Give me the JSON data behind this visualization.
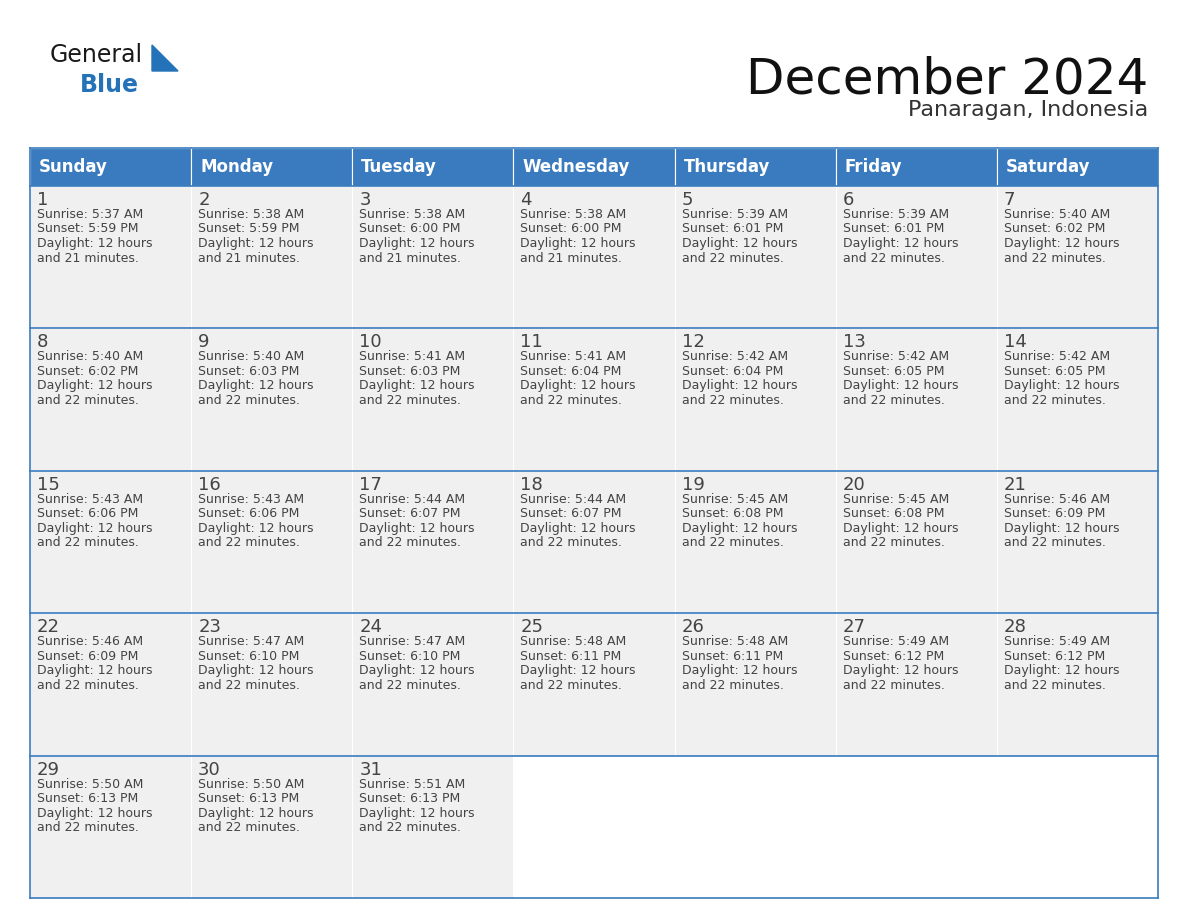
{
  "title": "December 2024",
  "subtitle": "Panaragan, Indonesia",
  "header_color": "#3a7bbf",
  "header_text_color": "#ffffff",
  "day_names": [
    "Sunday",
    "Monday",
    "Tuesday",
    "Wednesday",
    "Thursday",
    "Friday",
    "Saturday"
  ],
  "weeks": [
    [
      {
        "day": "1",
        "sunrise": "5:37 AM",
        "sunset": "5:59 PM",
        "daylight_line1": "12 hours",
        "daylight_line2": "and 21 minutes."
      },
      {
        "day": "2",
        "sunrise": "5:38 AM",
        "sunset": "5:59 PM",
        "daylight_line1": "12 hours",
        "daylight_line2": "and 21 minutes."
      },
      {
        "day": "3",
        "sunrise": "5:38 AM",
        "sunset": "6:00 PM",
        "daylight_line1": "12 hours",
        "daylight_line2": "and 21 minutes."
      },
      {
        "day": "4",
        "sunrise": "5:38 AM",
        "sunset": "6:00 PM",
        "daylight_line1": "12 hours",
        "daylight_line2": "and 21 minutes."
      },
      {
        "day": "5",
        "sunrise": "5:39 AM",
        "sunset": "6:01 PM",
        "daylight_line1": "12 hours",
        "daylight_line2": "and 22 minutes."
      },
      {
        "day": "6",
        "sunrise": "5:39 AM",
        "sunset": "6:01 PM",
        "daylight_line1": "12 hours",
        "daylight_line2": "and 22 minutes."
      },
      {
        "day": "7",
        "sunrise": "5:40 AM",
        "sunset": "6:02 PM",
        "daylight_line1": "12 hours",
        "daylight_line2": "and 22 minutes."
      }
    ],
    [
      {
        "day": "8",
        "sunrise": "5:40 AM",
        "sunset": "6:02 PM",
        "daylight_line1": "12 hours",
        "daylight_line2": "and 22 minutes."
      },
      {
        "day": "9",
        "sunrise": "5:40 AM",
        "sunset": "6:03 PM",
        "daylight_line1": "12 hours",
        "daylight_line2": "and 22 minutes."
      },
      {
        "day": "10",
        "sunrise": "5:41 AM",
        "sunset": "6:03 PM",
        "daylight_line1": "12 hours",
        "daylight_line2": "and 22 minutes."
      },
      {
        "day": "11",
        "sunrise": "5:41 AM",
        "sunset": "6:04 PM",
        "daylight_line1": "12 hours",
        "daylight_line2": "and 22 minutes."
      },
      {
        "day": "12",
        "sunrise": "5:42 AM",
        "sunset": "6:04 PM",
        "daylight_line1": "12 hours",
        "daylight_line2": "and 22 minutes."
      },
      {
        "day": "13",
        "sunrise": "5:42 AM",
        "sunset": "6:05 PM",
        "daylight_line1": "12 hours",
        "daylight_line2": "and 22 minutes."
      },
      {
        "day": "14",
        "sunrise": "5:42 AM",
        "sunset": "6:05 PM",
        "daylight_line1": "12 hours",
        "daylight_line2": "and 22 minutes."
      }
    ],
    [
      {
        "day": "15",
        "sunrise": "5:43 AM",
        "sunset": "6:06 PM",
        "daylight_line1": "12 hours",
        "daylight_line2": "and 22 minutes."
      },
      {
        "day": "16",
        "sunrise": "5:43 AM",
        "sunset": "6:06 PM",
        "daylight_line1": "12 hours",
        "daylight_line2": "and 22 minutes."
      },
      {
        "day": "17",
        "sunrise": "5:44 AM",
        "sunset": "6:07 PM",
        "daylight_line1": "12 hours",
        "daylight_line2": "and 22 minutes."
      },
      {
        "day": "18",
        "sunrise": "5:44 AM",
        "sunset": "6:07 PM",
        "daylight_line1": "12 hours",
        "daylight_line2": "and 22 minutes."
      },
      {
        "day": "19",
        "sunrise": "5:45 AM",
        "sunset": "6:08 PM",
        "daylight_line1": "12 hours",
        "daylight_line2": "and 22 minutes."
      },
      {
        "day": "20",
        "sunrise": "5:45 AM",
        "sunset": "6:08 PM",
        "daylight_line1": "12 hours",
        "daylight_line2": "and 22 minutes."
      },
      {
        "day": "21",
        "sunrise": "5:46 AM",
        "sunset": "6:09 PM",
        "daylight_line1": "12 hours",
        "daylight_line2": "and 22 minutes."
      }
    ],
    [
      {
        "day": "22",
        "sunrise": "5:46 AM",
        "sunset": "6:09 PM",
        "daylight_line1": "12 hours",
        "daylight_line2": "and 22 minutes."
      },
      {
        "day": "23",
        "sunrise": "5:47 AM",
        "sunset": "6:10 PM",
        "daylight_line1": "12 hours",
        "daylight_line2": "and 22 minutes."
      },
      {
        "day": "24",
        "sunrise": "5:47 AM",
        "sunset": "6:10 PM",
        "daylight_line1": "12 hours",
        "daylight_line2": "and 22 minutes."
      },
      {
        "day": "25",
        "sunrise": "5:48 AM",
        "sunset": "6:11 PM",
        "daylight_line1": "12 hours",
        "daylight_line2": "and 22 minutes."
      },
      {
        "day": "26",
        "sunrise": "5:48 AM",
        "sunset": "6:11 PM",
        "daylight_line1": "12 hours",
        "daylight_line2": "and 22 minutes."
      },
      {
        "day": "27",
        "sunrise": "5:49 AM",
        "sunset": "6:12 PM",
        "daylight_line1": "12 hours",
        "daylight_line2": "and 22 minutes."
      },
      {
        "day": "28",
        "sunrise": "5:49 AM",
        "sunset": "6:12 PM",
        "daylight_line1": "12 hours",
        "daylight_line2": "and 22 minutes."
      }
    ],
    [
      {
        "day": "29",
        "sunrise": "5:50 AM",
        "sunset": "6:13 PM",
        "daylight_line1": "12 hours",
        "daylight_line2": "and 22 minutes."
      },
      {
        "day": "30",
        "sunrise": "5:50 AM",
        "sunset": "6:13 PM",
        "daylight_line1": "12 hours",
        "daylight_line2": "and 22 minutes."
      },
      {
        "day": "31",
        "sunrise": "5:51 AM",
        "sunset": "6:13 PM",
        "daylight_line1": "12 hours",
        "daylight_line2": "and 22 minutes."
      },
      null,
      null,
      null,
      null
    ]
  ],
  "logo_color_general": "#1a1a1a",
  "logo_color_blue": "#2472b8",
  "logo_triangle_color": "#2472b8",
  "cell_bg_color": "#f0f0f0",
  "cell_empty_bg": "#ffffff",
  "text_color": "#444444",
  "line_color": "#3a7bbf",
  "title_fontsize": 36,
  "subtitle_fontsize": 16,
  "header_fontsize": 12,
  "day_num_fontsize": 13,
  "cell_text_fontsize": 9
}
